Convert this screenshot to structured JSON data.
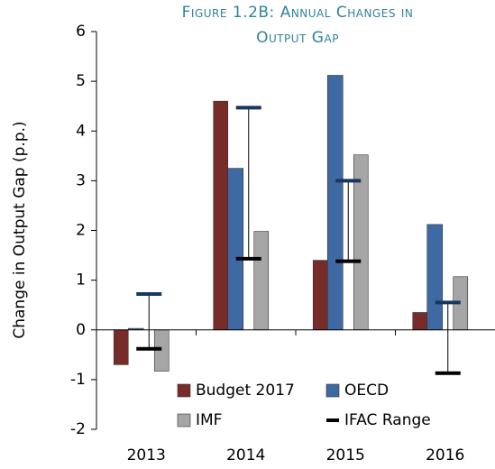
{
  "chart_data": {
    "type": "bar",
    "title": [
      "Figure 1.2B: Annual Changes in",
      "Output Gap"
    ],
    "y_label": "Change in Output Gap (p.p.)",
    "categories": [
      "2013",
      "2014",
      "2015",
      "2016"
    ],
    "series": [
      {
        "name": "Budget 2017",
        "color": "#772c2a",
        "values": [
          -0.7,
          4.6,
          1.4,
          0.35
        ]
      },
      {
        "name": "OECD",
        "color": "#3f69a3",
        "values": [
          0.03,
          3.25,
          5.12,
          2.12
        ]
      },
      {
        "name": "IMF",
        "color": "#a6a6a6",
        "values": [
          -0.83,
          1.98,
          3.52,
          1.07
        ]
      }
    ],
    "range": {
      "name": "IFAC Range",
      "color": "#000000",
      "high_color": "#17375e",
      "low": [
        -0.38,
        1.43,
        1.38,
        -0.87
      ],
      "high": [
        0.72,
        4.47,
        3.0,
        0.55
      ]
    },
    "ylim": [
      -2,
      6
    ],
    "yticks": [
      -2,
      -1,
      0,
      1,
      2,
      3,
      4,
      5,
      6
    ]
  }
}
